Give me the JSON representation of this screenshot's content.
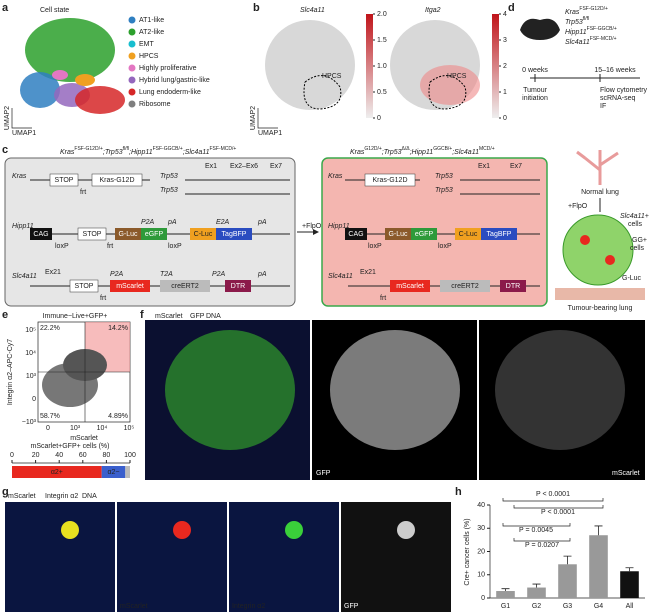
{
  "panel_labels": [
    "a",
    "b",
    "c",
    "d",
    "e",
    "f",
    "g",
    "h"
  ],
  "panel_a": {
    "title": "Cell state",
    "x_label": "UMAP1",
    "y_label": "UMAP2",
    "legend": [
      {
        "name": "AT1-like",
        "color": "#2f7fc1"
      },
      {
        "name": "AT2-like",
        "color": "#2ca02c"
      },
      {
        "name": "EMT",
        "color": "#17becf"
      },
      {
        "name": "HPCS",
        "color": "#f0a020"
      },
      {
        "name": "Highly proliferative",
        "color": "#e377c2"
      },
      {
        "name": "Hybrid lung/gastric-like",
        "color": "#9467bd"
      },
      {
        "name": "Lung endoderm-like",
        "color": "#d62728"
      },
      {
        "name": "Ribosome",
        "color": "#7f7f7f"
      }
    ]
  },
  "panel_b": {
    "genes": [
      "Slc4a11",
      "Itga2"
    ],
    "region": "HPCS",
    "x_label": "UMAP1",
    "y_label": "UMAP2",
    "colorbars": [
      {
        "lim": [
          0,
          2
        ],
        "ticks": [
          0,
          0.5,
          {
            "value": 1,
            "label": "1.0"
          },
          1.5,
          {
            "value": 2,
            "label": "2.0"
          }
        ]
      },
      {
        "lim": [
          0,
          4
        ],
        "ticks": [
          0,
          1,
          2,
          3,
          4
        ]
      }
    ]
  },
  "panel_c": {
    "genotype_left": [
      "Kras",
      "FSF-G12D/+",
      ";Trp53",
      "fl/fl",
      ";Hipp11",
      "FSF-GGCB/+",
      ";Slc4a11",
      "FSF-MCD/+"
    ],
    "genotype_right": [
      "Kras",
      "G12D/+",
      ";Trp53",
      "Δ/Δ",
      ";Hipp11",
      "GGCB/+",
      ";Slc4a11",
      "MCD/+"
    ],
    "genes": [
      "Kras",
      "Trp53",
      "Hipp11",
      "Slc4a11"
    ],
    "elements": [
      "STOP",
      "Kras-G12D",
      "CAG",
      "G-Luc",
      "eGFP",
      "C-Luc",
      "TagBFP",
      "mScarlet",
      "creERT2",
      "DTR"
    ],
    "sites": [
      "frt",
      "loxP",
      "P2A",
      "pA",
      "E2A",
      "T2A"
    ],
    "exons": [
      "Ex1",
      "Ex2–Ex6",
      "Ex7",
      "Ex21"
    ],
    "flpo": "+FlpO",
    "schematic": [
      "Normal lung",
      "+FlpO",
      "Slc4a11+",
      "cells",
      "GG+",
      "cells",
      "G-Luc",
      "Tumour-bearing lung"
    ]
  },
  "panel_d": {
    "genotype": [
      [
        "Kras",
        "FSF-G12D/+"
      ],
      [
        "Trp53",
        "fl/fl"
      ],
      [
        "Hipp11",
        "FSF-GGCB/+"
      ],
      [
        "Slc4a11",
        "FSF-MCD/+"
      ]
    ],
    "timeline": [
      "0 weeks",
      "15–16 weeks",
      "Tumour",
      "initiation",
      "Flow cytometry",
      "scRNA-seq",
      "IF"
    ]
  },
  "panel_e": {
    "gate": "Immune−Live+GFP+",
    "y_label": "Integrin α2–APC-Cy7",
    "x_label": "mScarlet",
    "quadrants": [
      "22.2%",
      "14.2%",
      "58.7%",
      "4.89%"
    ],
    "yticks": [
      "10⁵",
      "10⁴",
      "10³",
      "0",
      "−10³"
    ],
    "xticks": [
      "0",
      "10³",
      "10⁴",
      "10⁵"
    ]
  },
  "panel_f": {
    "legend": [
      "mScarlet",
      "GFP",
      "DNA"
    ],
    "labels": [
      "GFP",
      "mScarlet"
    ]
  },
  "panel_g": {
    "legend": [
      "mScarlet",
      "Integrin α2",
      "DNA"
    ],
    "labels": [
      "mScarlet",
      "Integrin α2",
      "GFP"
    ]
  },
  "chart_data": [
    {
      "type": "bar",
      "y_label": "Cre+ cancer cells (%)",
      "categories": [
        "G1",
        "G2",
        "G3",
        "G4",
        "All"
      ],
      "values": [
        3,
        4.5,
        14.5,
        27,
        11.5
      ],
      "errors": [
        1,
        1.5,
        3.5,
        4,
        1.5
      ],
      "color": "#999999",
      "colors": [
        "#999999",
        "#999999",
        "#999999",
        "#999999",
        "#111111"
      ],
      "ylim": [
        0,
        40
      ],
      "yticks": [
        0,
        10,
        20,
        30,
        40
      ],
      "annotations": [
        "P < 0.0001",
        "P < 0.0001",
        "P = 0.0045",
        "P = 0.0207"
      ]
    },
    {
      "type": "stacked_bar",
      "x_label": "mScarlet+GFP+ cells (%)",
      "series": [
        {
          "name": "α2+",
          "color": "#e8281f",
          "values": [
            76
          ]
        },
        {
          "name": "α2−",
          "color": "#3a5fcd",
          "values": [
            20
          ]
        },
        {
          "name": "",
          "color": "#bbbbbb",
          "values": [
            4
          ]
        }
      ],
      "xlim": [
        0,
        100
      ],
      "xticks": [
        0,
        20,
        40,
        60,
        80,
        100
      ]
    }
  ]
}
